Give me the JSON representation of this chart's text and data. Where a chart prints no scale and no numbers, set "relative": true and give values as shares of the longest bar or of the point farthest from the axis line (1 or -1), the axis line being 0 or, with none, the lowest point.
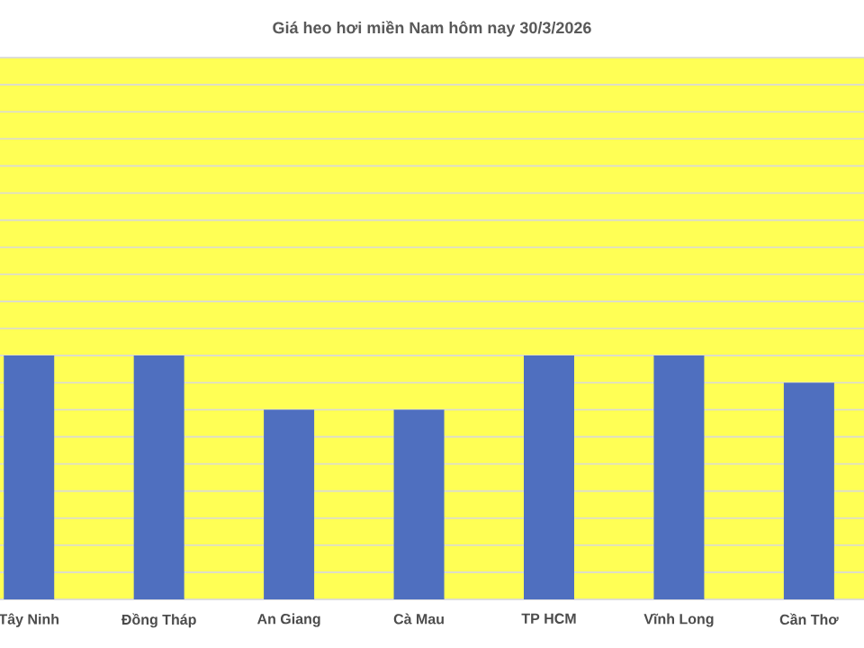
{
  "chart_data": {
    "type": "bar",
    "title": "Giá heo hơi miền Nam hôm nay 30/3/2026",
    "categories": [
      "Tây Ninh",
      "Đồng Tháp",
      "An Giang",
      "Cà Mau",
      "TP HCM",
      "Vĩnh Long",
      "Cần Thơ"
    ],
    "values": [
      1,
      1,
      0.778,
      0.778,
      1,
      1,
      0.889
    ],
    "color": "#4f6fbf",
    "relative": true,
    "grid": "y"
  }
}
